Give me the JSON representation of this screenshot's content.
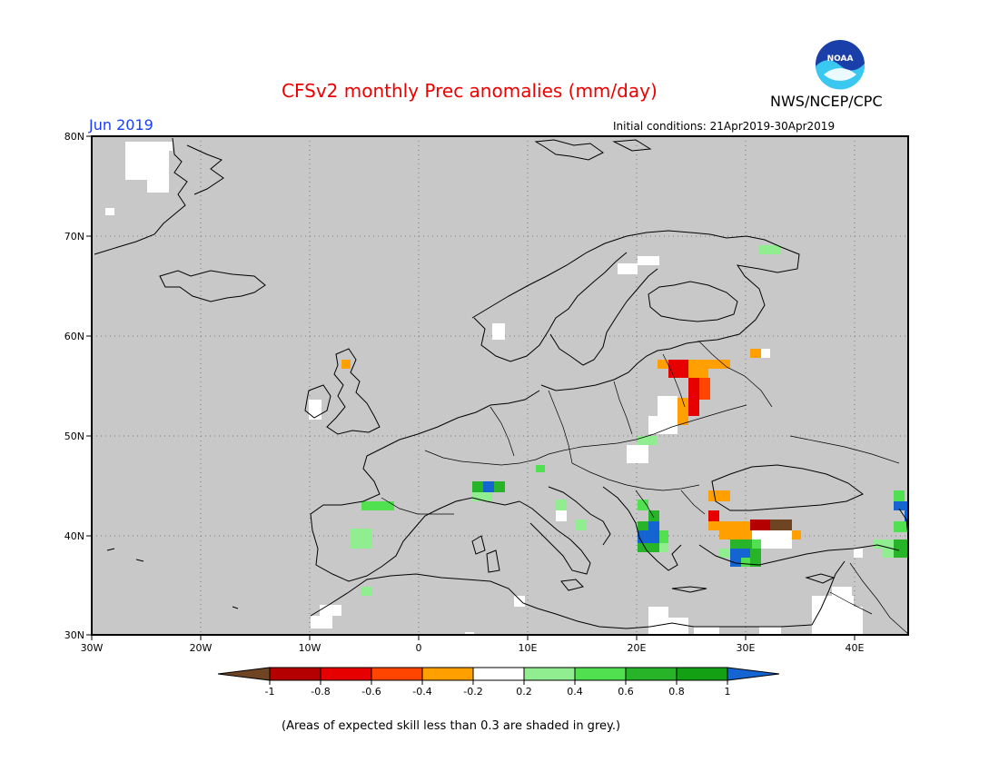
{
  "header": {
    "title": "CFSv2 monthly Prec anomalies (mm/day)",
    "agency": "NWS/NCEP/CPC",
    "month": "Jun 2019",
    "initial_conditions": "Initial conditions: 21Apr2019-30Apr2019",
    "logo_text": "NOAA"
  },
  "map": {
    "lon_range": [
      -30,
      45
    ],
    "lat_range": [
      30,
      80
    ],
    "lat_ticks": [
      {
        "value": 80,
        "label": "80N"
      },
      {
        "value": 70,
        "label": "70N"
      },
      {
        "value": 60,
        "label": "60N"
      },
      {
        "value": 50,
        "label": "50N"
      },
      {
        "value": 40,
        "label": "40N"
      },
      {
        "value": 30,
        "label": "30N"
      }
    ],
    "lon_ticks": [
      {
        "value": -30,
        "label": "30W"
      },
      {
        "value": -20,
        "label": "20W"
      },
      {
        "value": -10,
        "label": "10W"
      },
      {
        "value": 0,
        "label": "0"
      },
      {
        "value": 10,
        "label": "10E"
      },
      {
        "value": 20,
        "label": "20E"
      },
      {
        "value": 30,
        "label": "30E"
      },
      {
        "value": 40,
        "label": "40E"
      }
    ],
    "background_color": "#c8c8c8",
    "grid": true
  },
  "colorbar": {
    "labels": [
      "-1",
      "-0.8",
      "-0.6",
      "-0.4",
      "-0.2",
      "0.2",
      "0.4",
      "0.6",
      "0.8",
      "1"
    ],
    "colors": [
      "#6e4423",
      "#b40000",
      "#e60000",
      "#ff4500",
      "#ffa000",
      "#ffffff",
      "#90ee90",
      "#50e050",
      "#28b428",
      "#14a014",
      "#1464d2"
    ]
  },
  "footnote": "(Areas of expected skill less than 0.3 are shaded in grey.)"
}
